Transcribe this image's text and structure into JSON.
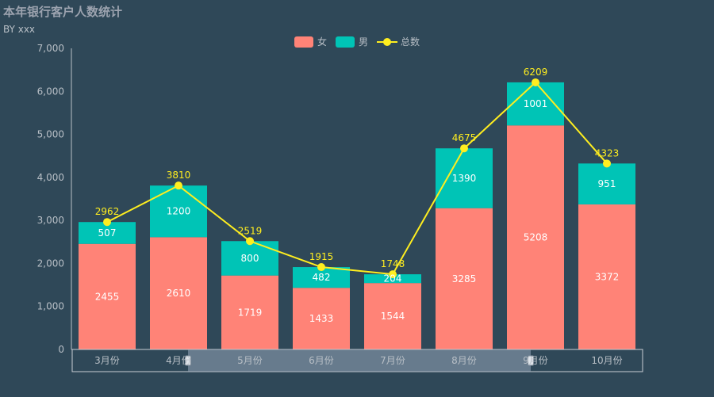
{
  "header": {
    "title": "本年银行客户人数统计",
    "subtitle": "BY xxx"
  },
  "legend": {
    "female": "女",
    "male": "男",
    "total": "总数"
  },
  "colors": {
    "background": "#2f4858",
    "female": "#ff8377",
    "male": "#00c4b6",
    "total": "#ffee1f",
    "axis": "#b8bfc6",
    "label": "#ffffff"
  },
  "chart_data": {
    "type": "bar",
    "stacked": true,
    "categories": [
      "3月份",
      "4月份",
      "5月份",
      "6月份",
      "7月份",
      "8月份",
      "9月份",
      "10月份"
    ],
    "series": [
      {
        "name": "女",
        "type": "bar",
        "values": [
          2455,
          2610,
          1719,
          1433,
          1544,
          3285,
          5208,
          3372
        ]
      },
      {
        "name": "男",
        "type": "bar",
        "values": [
          507,
          1200,
          800,
          482,
          204,
          1390,
          1001,
          951
        ]
      },
      {
        "name": "总数",
        "type": "line",
        "values": [
          2962,
          3810,
          2519,
          1915,
          1748,
          4675,
          6209,
          4323
        ]
      }
    ],
    "ylim": [
      0,
      7000
    ],
    "yticks": [
      0,
      1000,
      2000,
      3000,
      4000,
      5000,
      6000,
      7000
    ],
    "ytick_labels": [
      "0",
      "1,000",
      "2,000",
      "3,000",
      "4,000",
      "5,000",
      "6,000",
      "7,000"
    ],
    "legend_position": "top-center",
    "grid": false,
    "datazoom": {
      "start_category": "4月份",
      "end_category": "9月份"
    }
  }
}
